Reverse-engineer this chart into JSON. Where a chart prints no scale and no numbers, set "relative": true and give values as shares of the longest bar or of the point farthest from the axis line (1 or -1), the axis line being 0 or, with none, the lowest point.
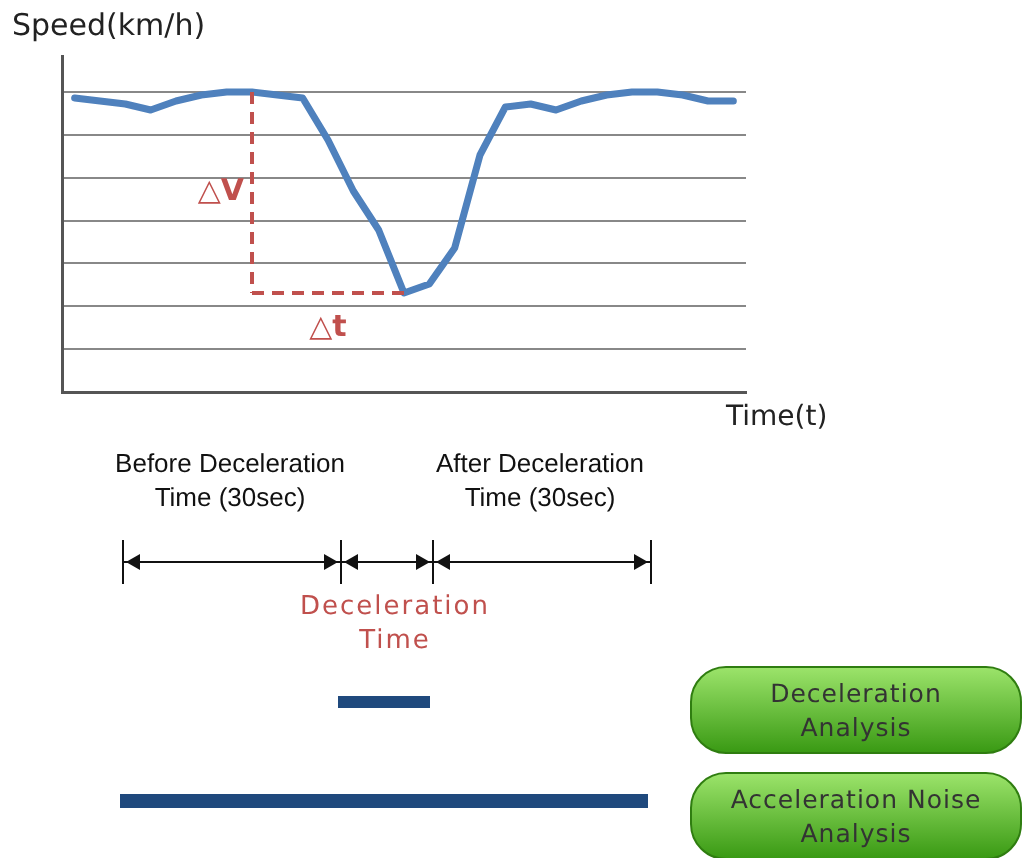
{
  "chart_data": {
    "type": "line",
    "relative": true,
    "xlabel": "Time(t)",
    "ylabel": "Speed(km/h)",
    "grid": "y",
    "legend": false,
    "marker": "none",
    "line_style": "solid",
    "tick_labels": false,
    "categories": [
      null,
      null,
      null,
      null,
      null,
      null,
      null,
      null,
      null,
      null,
      null,
      null,
      null,
      null,
      null,
      null,
      null,
      null,
      null,
      null,
      null,
      null,
      null,
      null,
      null,
      null,
      null
    ],
    "series": [
      {
        "color": "#4f81bd",
        "values": [
          0.98,
          0.97,
          0.96,
          0.94,
          0.97,
          0.99,
          1,
          1,
          0.99,
          0.98,
          0.84,
          0.67,
          0.54,
          0.33,
          0.36,
          0.48,
          0.79,
          0.95,
          0.96,
          0.94,
          0.97,
          0.99,
          1,
          1,
          0.99,
          0.97,
          0.97
        ]
      }
    ],
    "annotations": [
      "△V",
      "△t",
      "Before Deceleration Time (30sec)",
      "After Deceleration Time (30sec)",
      "Deceleration Time",
      "Deceleration Analysis",
      "Acceleration Noise Analysis"
    ]
  }
}
